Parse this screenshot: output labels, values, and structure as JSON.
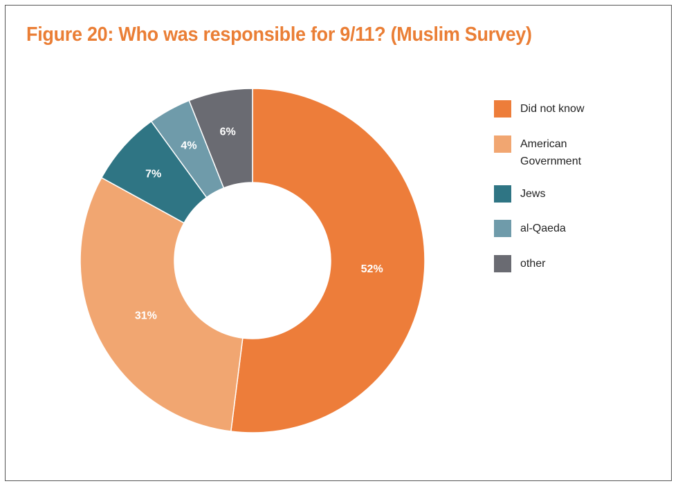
{
  "chart_data": {
    "type": "pie",
    "subtype": "donut",
    "title": "Figure 20: Who was responsible for 9/11? (Muslim Survey)",
    "categories": [
      "Did not know",
      "American Government",
      "Jews",
      "al-Qaeda",
      "other"
    ],
    "legend_labels": [
      [
        "Did not know"
      ],
      [
        "American",
        "Government"
      ],
      [
        "Jews"
      ],
      [
        "al-Qaeda"
      ],
      [
        "other"
      ]
    ],
    "values": [
      52,
      31,
      7,
      4,
      6
    ],
    "data_labels": [
      "52%",
      "31%",
      "7%",
      "4%",
      "6%"
    ],
    "colors": [
      "#ED7D3A",
      "#F1A671",
      "#2F7584",
      "#6F9BAA",
      "#6A6B72"
    ],
    "legend_position": "right",
    "start_angle": "top, clockwise"
  }
}
